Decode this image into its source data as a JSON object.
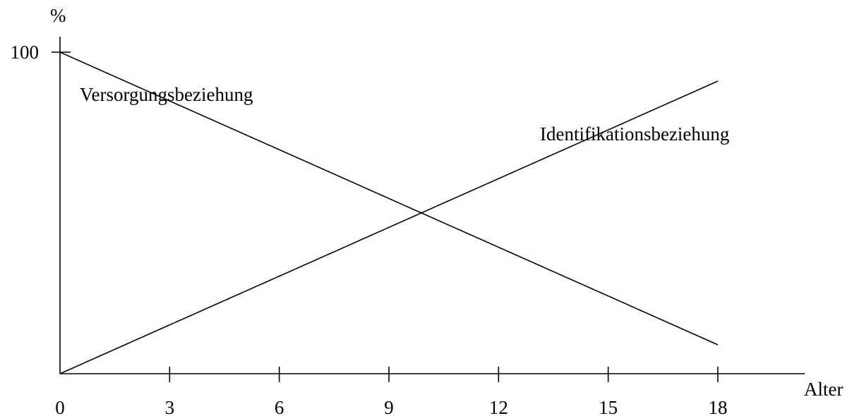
{
  "chart_data": {
    "type": "line",
    "title": "",
    "xlabel": "Alter",
    "ylabel": "%",
    "xlim": [
      0,
      18
    ],
    "ylim": [
      0,
      100
    ],
    "x_ticks": [
      0,
      3,
      6,
      9,
      12,
      15,
      18
    ],
    "x_tick_labels": [
      "0",
      "3",
      "6",
      "9",
      "12",
      "15",
      "18"
    ],
    "y_ticks": [
      100
    ],
    "y_tick_labels": [
      "100"
    ],
    "grid": false,
    "series": [
      {
        "name": "Versorgungsbeziehung",
        "x": [
          0,
          18
        ],
        "y": [
          100,
          9
        ]
      },
      {
        "name": "Identifikationsbeziehung",
        "x": [
          0,
          18
        ],
        "y": [
          0,
          91
        ]
      }
    ]
  }
}
